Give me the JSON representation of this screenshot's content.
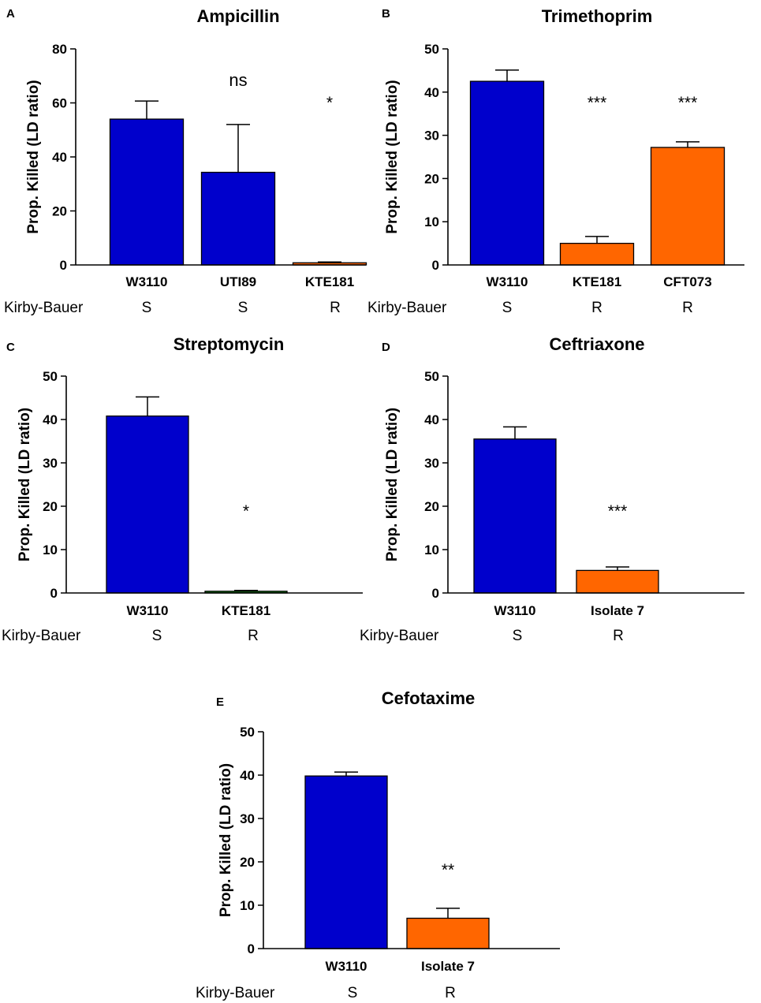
{
  "kirby_bauer_label": "Kirby-Bauer",
  "colors": {
    "susceptible": "#0000CC",
    "resistant": "#FF6600",
    "resistant_alt": "#1a8a1a",
    "axis": "#000000"
  },
  "chart_data": [
    {
      "type": "bar",
      "panel": "A",
      "title": "Ampicillin",
      "ylabel": "Prop. Killed (LD ratio)",
      "ylim": [
        0,
        80
      ],
      "yticks": [
        0,
        20,
        40,
        60,
        80
      ],
      "categories": [
        "W3110",
        "UTI89",
        "KTE181"
      ],
      "values": [
        54,
        34.3,
        0.8
      ],
      "errors": [
        6.7,
        17.7,
        0.3
      ],
      "significance": [
        "",
        "ns",
        "*"
      ],
      "kirby_bauer": [
        "S",
        "S",
        "R"
      ],
      "colors": [
        "#0000CC",
        "#0000CC",
        "#FF6600"
      ]
    },
    {
      "type": "bar",
      "panel": "B",
      "title": "Trimethoprim",
      "ylabel": "Prop. Killed (LD ratio)",
      "ylim": [
        0,
        50
      ],
      "yticks": [
        0,
        10,
        20,
        30,
        40,
        50
      ],
      "categories": [
        "W3110",
        "KTE181",
        "CFT073"
      ],
      "values": [
        42.5,
        5,
        27.2
      ],
      "errors": [
        2.6,
        1.6,
        1.3
      ],
      "significance": [
        "",
        "***",
        "***"
      ],
      "kirby_bauer": [
        "S",
        "R",
        "R"
      ],
      "colors": [
        "#0000CC",
        "#FF6600",
        "#FF6600"
      ]
    },
    {
      "type": "bar",
      "panel": "C",
      "title": "Streptomycin",
      "ylabel": "Prop. Killed (LD ratio)",
      "ylim": [
        0,
        50
      ],
      "yticks": [
        0,
        10,
        20,
        30,
        40,
        50
      ],
      "categories": [
        "W3110",
        "KTE181"
      ],
      "values": [
        40.8,
        0.4
      ],
      "errors": [
        4.4,
        0.2
      ],
      "significance": [
        "",
        "*"
      ],
      "kirby_bauer": [
        "S",
        "R"
      ],
      "colors": [
        "#0000CC",
        "#1a8a1a"
      ]
    },
    {
      "type": "bar",
      "panel": "D",
      "title": "Ceftriaxone",
      "ylabel": "Prop. Killed (LD ratio)",
      "ylim": [
        0,
        50
      ],
      "yticks": [
        0,
        10,
        20,
        30,
        40,
        50
      ],
      "categories": [
        "W3110",
        "Isolate 7"
      ],
      "values": [
        35.5,
        5.2
      ],
      "errors": [
        2.8,
        0.8
      ],
      "significance": [
        "",
        "***"
      ],
      "kirby_bauer": [
        "S",
        "R"
      ],
      "colors": [
        "#0000CC",
        "#FF6600"
      ]
    },
    {
      "type": "bar",
      "panel": "E",
      "title": "Cefotaxime",
      "ylabel": "Prop. Killed (LD ratio)",
      "ylim": [
        0,
        50
      ],
      "yticks": [
        0,
        10,
        20,
        30,
        40,
        50
      ],
      "categories": [
        "W3110",
        "Isolate 7"
      ],
      "values": [
        39.8,
        7
      ],
      "errors": [
        0.9,
        2.3
      ],
      "significance": [
        "",
        "**"
      ],
      "kirby_bauer": [
        "S",
        "R"
      ],
      "colors": [
        "#0000CC",
        "#FF6600"
      ]
    }
  ]
}
